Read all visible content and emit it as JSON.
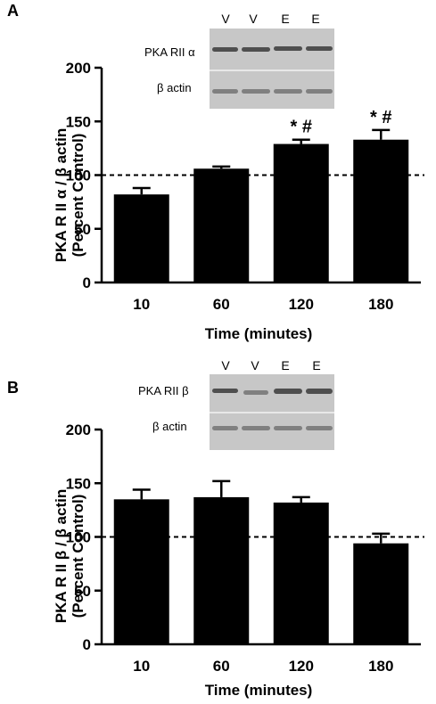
{
  "panels": [
    {
      "letter": "A",
      "ylabel_line1": "PKA R II α / β actin",
      "ylabel_line2": "(Percent  Control)",
      "xlabel": "Time (minutes)",
      "blot": {
        "lanes": [
          "V",
          "V",
          "E",
          "E"
        ],
        "rows": [
          "PKA RII α",
          "β actin"
        ]
      }
    },
    {
      "letter": "B",
      "ylabel_line1": "PKA R II β / β actin",
      "ylabel_line2": "(Percent  Control)",
      "xlabel": "Time (minutes)",
      "blot": {
        "lanes": [
          "V",
          "V",
          "E",
          "E"
        ],
        "rows": [
          "PKA RII β",
          "β actin"
        ]
      }
    }
  ],
  "chart_data": [
    {
      "type": "bar",
      "categories": [
        "10",
        "60",
        "120",
        "180"
      ],
      "values": [
        82,
        106,
        129,
        133
      ],
      "errors": [
        6,
        2,
        4,
        9
      ],
      "annotations": [
        "",
        "",
        "* #",
        "* #"
      ],
      "reference_line": 100,
      "ylim": [
        0,
        200
      ],
      "yticks": [
        0,
        50,
        100,
        150,
        200
      ],
      "xlabel": "Time (minutes)",
      "ylabel": "PKA R II α / β actin (Percent  Control)",
      "bar_color": "#000000"
    },
    {
      "type": "bar",
      "categories": [
        "10",
        "60",
        "120",
        "180"
      ],
      "values": [
        135,
        137,
        132,
        94
      ],
      "errors": [
        9,
        15,
        5,
        9
      ],
      "annotations": [
        "",
        "",
        "",
        ""
      ],
      "reference_line": 100,
      "ylim": [
        0,
        200
      ],
      "yticks": [
        0,
        50,
        100,
        150,
        200
      ],
      "xlabel": "Time (minutes)",
      "ylabel": "PKA R II β / β actin (Percent  Control)",
      "bar_color": "#000000"
    }
  ]
}
